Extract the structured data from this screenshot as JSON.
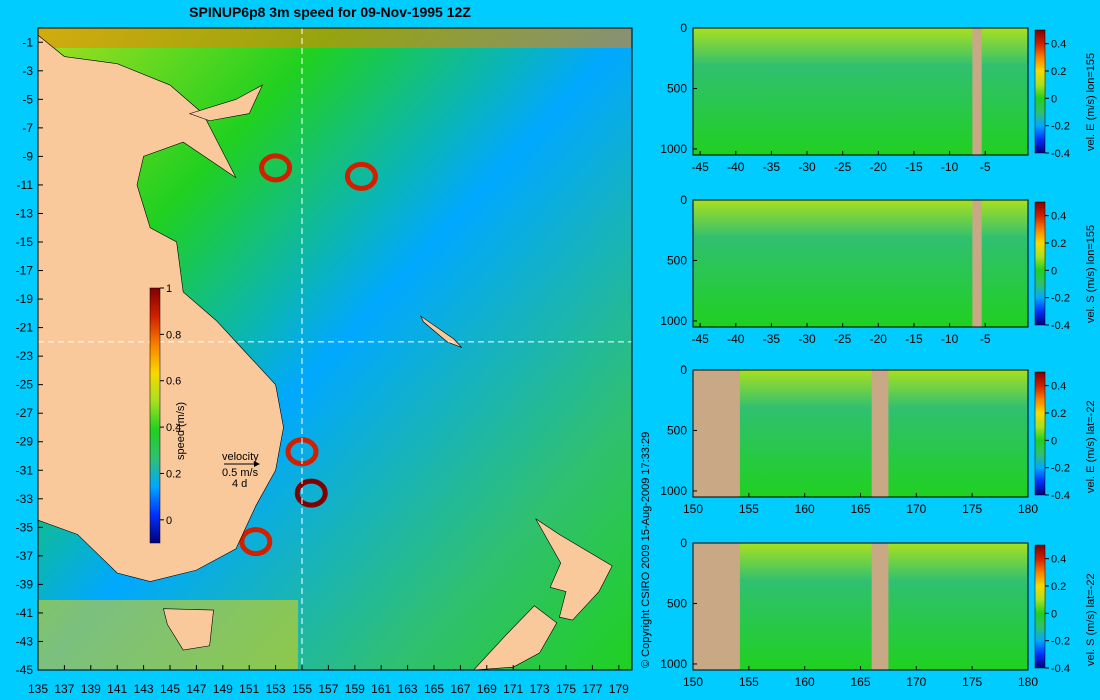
{
  "title": "SPINUP6p8 3m speed for 09-Nov-1995 12Z",
  "copyright": "© Copyright CSIRO 2009   15-Aug-2009 17:33:29",
  "colors": {
    "background": "#00ccff",
    "land": "#f9c99c",
    "section_land": "#c9a886"
  },
  "colormap_stops": [
    "#00007a",
    "#0030ff",
    "#00a8ff",
    "#30c070",
    "#20d020",
    "#a8e020",
    "#f8d800",
    "#f88000",
    "#d02000",
    "#800000"
  ],
  "chart_data": [
    {
      "type": "heatmap",
      "title": "SPINUP6p8 3m speed for 09-Nov-1995 12Z",
      "x_tick_labels": [
        "135",
        "137",
        "139",
        "141",
        "143",
        "145",
        "147",
        "149",
        "151",
        "153",
        "155",
        "157",
        "159",
        "161",
        "163",
        "165",
        "167",
        "169",
        "171",
        "173",
        "175",
        "177",
        "179"
      ],
      "y_tick_labels": [
        "-1",
        "-3",
        "-5",
        "-7",
        "-9",
        "-11",
        "-13",
        "-15",
        "-17",
        "-19",
        "-21",
        "-23",
        "-25",
        "-27",
        "-29",
        "-31",
        "-33",
        "-35",
        "-37",
        "-39",
        "-41",
        "-43",
        "-45"
      ],
      "xlim": [
        135,
        180
      ],
      "ylim": [
        -45,
        0
      ],
      "section_lon": 155,
      "section_lat": -22,
      "colorbar": {
        "label": "speed (m/s)",
        "range": [
          -0.1,
          1
        ],
        "ticks": [
          "1",
          "0.8",
          "0.6",
          "0.4",
          "0.2",
          "0"
        ]
      },
      "velocity_legend": {
        "title": "velocity",
        "speed": "0.5 m/s",
        "duration": "4 d"
      }
    },
    {
      "type": "heatmap",
      "x_tick_labels": [
        "-45",
        "-40",
        "-35",
        "-30",
        "-25",
        "-20",
        "-15",
        "-10",
        "-5"
      ],
      "y_tick_labels": [
        "0",
        "500",
        "1000"
      ],
      "xlim": [
        -46,
        1
      ],
      "ylim": [
        1050,
        0
      ],
      "colorbar": {
        "label": "vel. E (m/s) lon=155",
        "range": [
          -0.4,
          0.5
        ],
        "ticks": [
          "0.4",
          "0.2",
          "0",
          "-0.2",
          "-0.4"
        ]
      }
    },
    {
      "type": "heatmap",
      "x_tick_labels": [
        "-45",
        "-40",
        "-35",
        "-30",
        "-25",
        "-20",
        "-15",
        "-10",
        "-5"
      ],
      "y_tick_labels": [
        "0",
        "500",
        "1000"
      ],
      "xlim": [
        -46,
        1
      ],
      "ylim": [
        1050,
        0
      ],
      "colorbar": {
        "label": "vel. S (m/s) lon=155",
        "range": [
          -0.4,
          0.5
        ],
        "ticks": [
          "0.4",
          "0.2",
          "0",
          "-0.2",
          "-0.4"
        ]
      }
    },
    {
      "type": "heatmap",
      "x_tick_labels": [
        "150",
        "155",
        "160",
        "165",
        "170",
        "175",
        "180"
      ],
      "y_tick_labels": [
        "0",
        "500",
        "1000"
      ],
      "xlim": [
        150,
        180
      ],
      "ylim": [
        1050,
        0
      ],
      "colorbar": {
        "label": "vel. E (m/s) lat=-22",
        "range": [
          -0.4,
          0.5
        ],
        "ticks": [
          "0.4",
          "0.2",
          "0",
          "-0.2",
          "-0.4"
        ]
      }
    },
    {
      "type": "heatmap",
      "x_tick_labels": [
        "150",
        "155",
        "160",
        "165",
        "170",
        "175",
        "180"
      ],
      "y_tick_labels": [
        "0",
        "500",
        "1000"
      ],
      "xlim": [
        150,
        180
      ],
      "ylim": [
        1050,
        0
      ],
      "colorbar": {
        "label": "vel. S (m/s) lat=-22",
        "range": [
          -0.4,
          0.5
        ],
        "ticks": [
          "0.4",
          "0.2",
          "0",
          "-0.2",
          "-0.4"
        ]
      }
    }
  ]
}
